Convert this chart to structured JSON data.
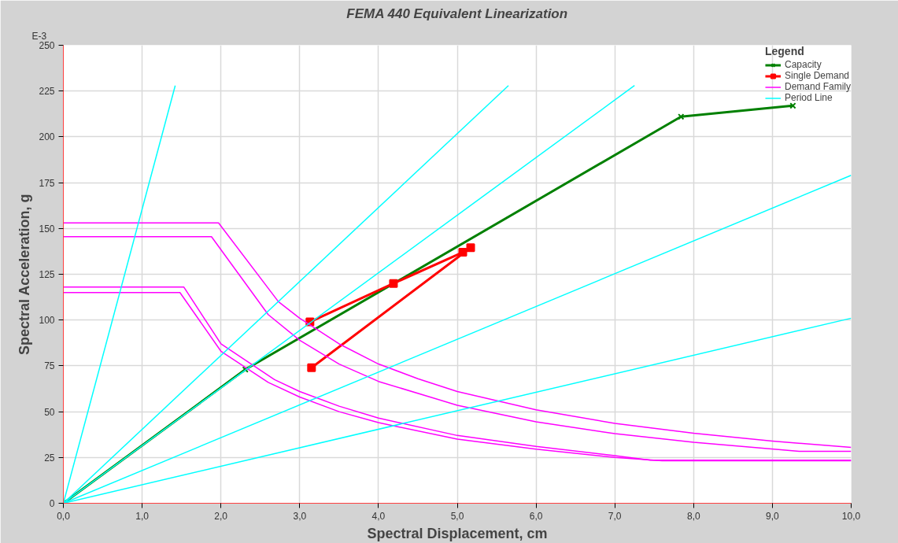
{
  "chart_data": {
    "type": "line",
    "title": "FEMA 440 Equivalent Linearization",
    "xlabel": "Spectral Displacement, cm",
    "ylabel": "Spectral Acceleration, g",
    "annotations": [
      "E-3"
    ],
    "legend_title": "Legend",
    "legend": "top right",
    "grid": true,
    "xlim": [
      0,
      10
    ],
    "ylim": [
      0,
      250
    ],
    "xticks": [
      {
        "value": 0,
        "label": "0,0"
      },
      {
        "value": 1,
        "label": "1,0"
      },
      {
        "value": 2,
        "label": "2,0"
      },
      {
        "value": 3,
        "label": "3,0"
      },
      {
        "value": 4,
        "label": "4,0"
      },
      {
        "value": 5,
        "label": "5,0"
      },
      {
        "value": 6,
        "label": "6,0"
      },
      {
        "value": 7,
        "label": "7,0"
      },
      {
        "value": 8,
        "label": "8,0"
      },
      {
        "value": 9,
        "label": "9,0"
      },
      {
        "value": 10,
        "label": "10,0"
      }
    ],
    "yticks": [
      0,
      25,
      50,
      75,
      100,
      125,
      150,
      175,
      200,
      225,
      250
    ],
    "series": [
      {
        "name": "Capacity",
        "color": "#008000",
        "marker": "cross",
        "x": [
          0,
          2.31,
          7.84,
          9.26
        ],
        "values": [
          0,
          73,
          211,
          217
        ]
      },
      {
        "name": "Single Demand",
        "color": "#ff0000",
        "marker": "square",
        "x": [
          3.15,
          5.17,
          5.07,
          4.19,
          3.13
        ],
        "values": [
          74,
          139.5,
          137,
          120,
          99
        ]
      },
      {
        "name": "Demand Family",
        "color": "#ff00ff",
        "marker": "none",
        "x": [
          0,
          1.88,
          2.6,
          3,
          3.5,
          4,
          5,
          6,
          7,
          8,
          9.34,
          10
        ],
        "values": [
          145.5,
          145.5,
          103,
          89,
          76,
          66.5,
          53.5,
          44.5,
          38,
          33.3,
          28.4,
          28.4
        ]
      },
      {
        "color": "#ff00ff",
        "marker": "none",
        "x": [
          0,
          1.97,
          2.73,
          3,
          3.5,
          4,
          4.5,
          5,
          6,
          7,
          8,
          9,
          10
        ],
        "values": [
          153,
          153,
          110,
          101,
          87,
          76,
          68,
          61,
          51,
          43.6,
          38.2,
          33.9,
          30.5
        ]
      },
      {
        "color": "#ff00ff",
        "marker": "none",
        "x": [
          0,
          1.53,
          2,
          2.68,
          3,
          3.5,
          4,
          5,
          6,
          7,
          7.45,
          10
        ],
        "values": [
          118,
          118,
          87,
          67.5,
          61,
          53,
          46.5,
          37,
          31,
          26,
          23.5,
          23.5
        ]
      },
      {
        "color": "#ff00ff",
        "marker": "none",
        "x": [
          0,
          1.48,
          2,
          2.6,
          3,
          3.5,
          4,
          5,
          6,
          7,
          7.6,
          10
        ],
        "values": [
          115,
          115,
          83,
          66,
          58,
          50,
          44,
          35,
          29.5,
          25,
          23.2,
          23.2
        ]
      },
      {
        "name": "Period Line",
        "color": "#00ffff",
        "marker": "none",
        "x": [
          0,
          1.42
        ],
        "values": [
          0,
          228
        ]
      },
      {
        "color": "#00ffff",
        "marker": "none",
        "x": [
          0,
          5.65
        ],
        "values": [
          0,
          228
        ]
      },
      {
        "color": "#00ffff",
        "marker": "none",
        "x": [
          0,
          7.25
        ],
        "values": [
          0,
          228
        ]
      },
      {
        "color": "#00ffff",
        "marker": "none",
        "x": [
          0,
          10
        ],
        "values": [
          0,
          179
        ]
      },
      {
        "color": "#00ffff",
        "marker": "none",
        "x": [
          0,
          10
        ],
        "values": [
          0,
          101
        ]
      }
    ]
  }
}
